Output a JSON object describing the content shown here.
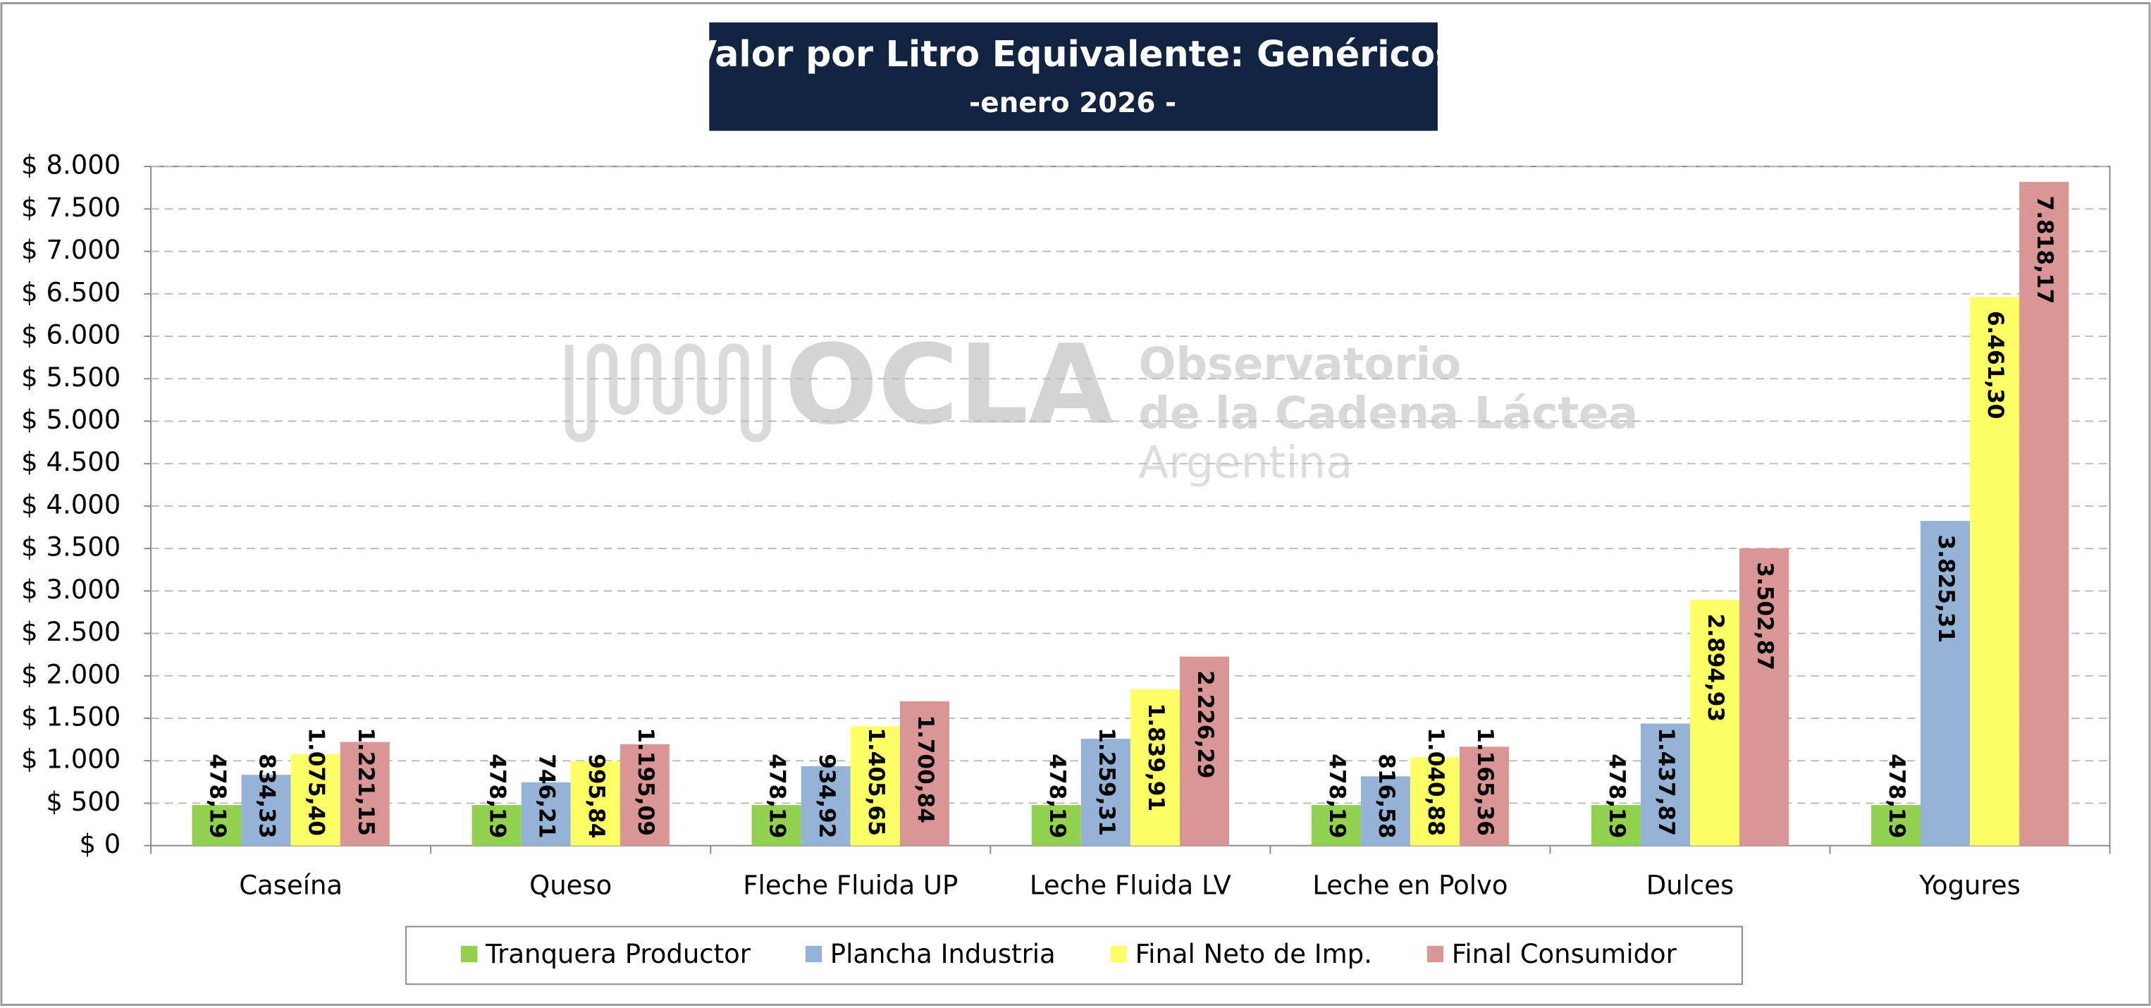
{
  "chart_data": {
    "type": "bar",
    "title": "Valor por Litro Equivalente: Genéricos",
    "subtitle": "-enero 2026 -",
    "watermark": {
      "logo": "OCLA",
      "line1": "Observatorio",
      "line2": "de la Cadena Láctea",
      "line3": "Argentina"
    },
    "categories": [
      "Caseína",
      "Queso",
      "Fleche Fluida UP",
      "Leche Fluida LV",
      "Leche en Polvo",
      "Dulces",
      "Yogures"
    ],
    "series": [
      {
        "name": "Tranquera Productor",
        "color": "#92d050",
        "values": [
          478.19,
          478.19,
          478.19,
          478.19,
          478.19,
          478.19,
          478.19
        ],
        "value_labels": [
          "478,19",
          "478,19",
          "478,19",
          "478,19",
          "478,19",
          "478,19",
          "478,19"
        ]
      },
      {
        "name": "Plancha Industria",
        "color": "#95b3d7",
        "values": [
          834.33,
          746.21,
          934.92,
          1259.31,
          816.58,
          1437.87,
          3825.31
        ],
        "value_labels": [
          "834,33",
          "746,21",
          "934,92",
          "1.259,31",
          "816,58",
          "1.437,87",
          "3.825,31"
        ]
      },
      {
        "name": "Final Neto de Imp.",
        "color": "#ffff66",
        "values": [
          1075.4,
          995.84,
          1405.65,
          1839.91,
          1040.88,
          2894.93,
          6461.3
        ],
        "value_labels": [
          "1.075,40",
          "995,84",
          "1.405,65",
          "1.839,91",
          "1.040,88",
          "2.894,93",
          "6.461,30"
        ]
      },
      {
        "name": "Final Consumidor",
        "color": "#da9694",
        "values": [
          1221.15,
          1195.09,
          1700.84,
          2226.29,
          1165.36,
          3502.87,
          7818.17
        ],
        "value_labels": [
          "1.221,15",
          "1.195,09",
          "1.700,84",
          "2.226,29",
          "1.165,36",
          "3.502,87",
          "7.818,17"
        ]
      }
    ],
    "ylim": [
      0,
      8000
    ],
    "yticks": [
      {
        "value": 0,
        "label": "$ 0"
      },
      {
        "value": 500,
        "label": "$ 500"
      },
      {
        "value": 1000,
        "label": "$ 1.000"
      },
      {
        "value": 1500,
        "label": "$ 1.500"
      },
      {
        "value": 2000,
        "label": "$ 2.000"
      },
      {
        "value": 2500,
        "label": "$ 2.500"
      },
      {
        "value": 3000,
        "label": "$ 3.000"
      },
      {
        "value": 3500,
        "label": "$ 3.500"
      },
      {
        "value": 4000,
        "label": "$ 4.000"
      },
      {
        "value": 4500,
        "label": "$ 4.500"
      },
      {
        "value": 5000,
        "label": "$ 5.000"
      },
      {
        "value": 5500,
        "label": "$ 5.500"
      },
      {
        "value": 6000,
        "label": "$ 6.000"
      },
      {
        "value": 6500,
        "label": "$ 6.500"
      },
      {
        "value": 7000,
        "label": "$ 7.000"
      },
      {
        "value": 7500,
        "label": "$ 7.500"
      },
      {
        "value": 8000,
        "label": "$ 8.000"
      }
    ],
    "grid": true,
    "legend": "bottom"
  }
}
